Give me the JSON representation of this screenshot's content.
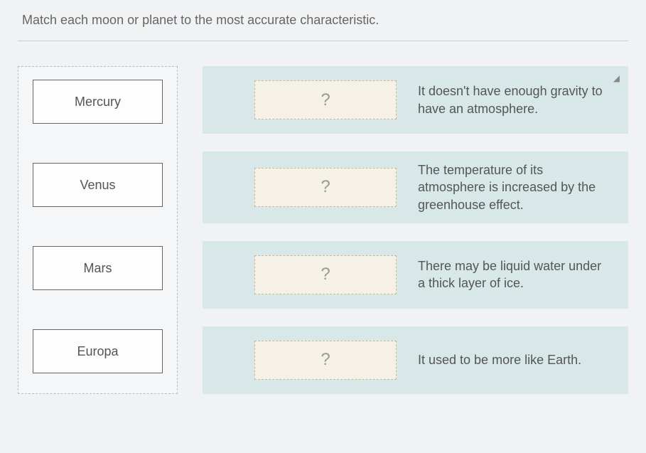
{
  "instruction": "Match each moon or planet to the most accurate characteristic.",
  "draggables": [
    {
      "label": "Mercury"
    },
    {
      "label": "Venus"
    },
    {
      "label": "Mars"
    },
    {
      "label": "Europa"
    }
  ],
  "targets": [
    {
      "placeholder": "?",
      "description": "It doesn't have enough gravity to have an atmosphere.",
      "hasExpand": true
    },
    {
      "placeholder": "?",
      "description": "The temperature of its atmosphere is increased by the greenhouse effect.",
      "hasExpand": false
    },
    {
      "placeholder": "?",
      "description": "There may be liquid water under a thick layer of ice.",
      "hasExpand": false
    },
    {
      "placeholder": "?",
      "description": "It used to be more like Earth.",
      "hasExpand": false
    }
  ],
  "styling": {
    "page_bg": "#f0f2f4",
    "source_border": "#bbbbbb",
    "draggable_border": "#666666",
    "draggable_bg": "#fdfdfd",
    "target_bg": "#d8e8e8",
    "dropzone_bg": "#f5f1e6",
    "dropzone_border": "#c9b895",
    "text_color": "#555555",
    "placeholder_color": "#999999",
    "instruction_fontsize": 18,
    "label_fontsize": 18,
    "desc_fontsize": 18,
    "placeholder_fontsize": 24
  },
  "expand_glyph": "◢"
}
